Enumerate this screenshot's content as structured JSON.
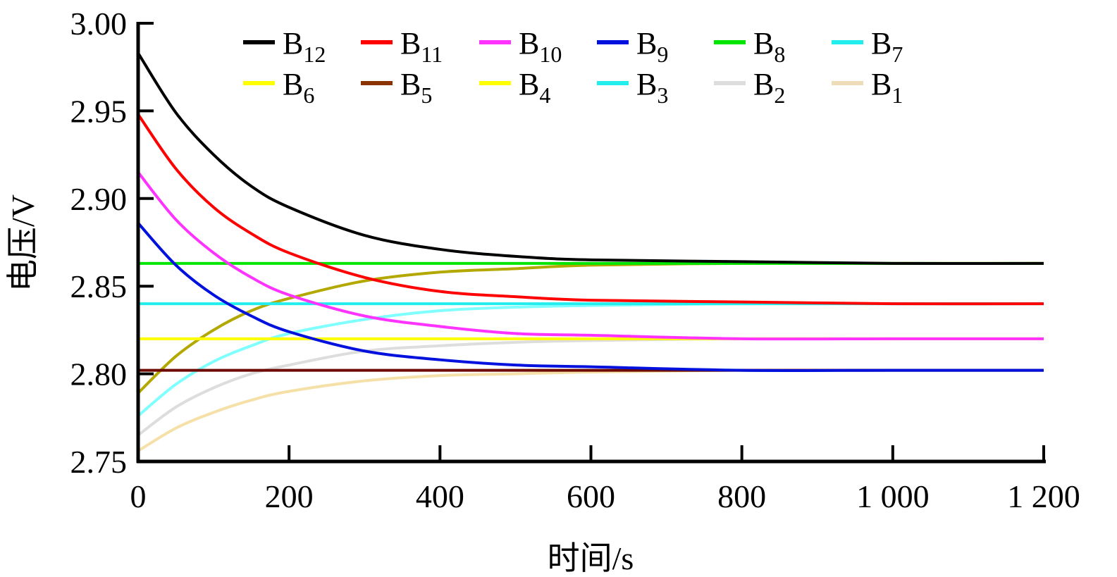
{
  "chart_data": {
    "type": "line",
    "title": "",
    "xlabel": "时间/s",
    "ylabel": "电压/V",
    "xlim": [
      0,
      1200
    ],
    "ylim": [
      2.75,
      3.0
    ],
    "grid": false,
    "legend_position": "top",
    "x_ticks": [
      "0",
      "200",
      "400",
      "600",
      "800",
      "1 000",
      "1 200"
    ],
    "x_tick_values": [
      0,
      200,
      400,
      600,
      800,
      1000,
      1200
    ],
    "y_ticks": [
      "2.75",
      "2.80",
      "2.85",
      "2.90",
      "2.95",
      "3.00"
    ],
    "y_tick_values": [
      2.75,
      2.8,
      2.85,
      2.9,
      2.95,
      3.0
    ],
    "x": [
      0,
      50,
      100,
      150,
      200,
      300,
      400,
      500,
      600,
      800,
      1000,
      1200
    ],
    "series": [
      {
        "name": "B12",
        "base": "B",
        "sub": "12",
        "color": "#000000",
        "legend_color": "#000000",
        "values": [
          2.983,
          2.949,
          2.925,
          2.907,
          2.895,
          2.879,
          2.871,
          2.867,
          2.865,
          2.864,
          2.863,
          2.863
        ]
      },
      {
        "name": "B11",
        "base": "B",
        "sub": "11",
        "color": "#ff0000",
        "legend_color": "#ff0000",
        "values": [
          2.948,
          2.917,
          2.895,
          2.88,
          2.869,
          2.855,
          2.847,
          2.844,
          2.842,
          2.841,
          2.84,
          2.84
        ]
      },
      {
        "name": "B10",
        "base": "B",
        "sub": "10",
        "color": "#ff33ff",
        "legend_color": "#ff33ff",
        "values": [
          2.915,
          2.888,
          2.869,
          2.855,
          2.845,
          2.833,
          2.827,
          2.823,
          2.822,
          2.82,
          2.82,
          2.82
        ]
      },
      {
        "name": "B9",
        "base": "B",
        "sub": "9",
        "color": "#0011dd",
        "legend_color": "#0011dd",
        "values": [
          2.886,
          2.862,
          2.845,
          2.833,
          2.824,
          2.813,
          2.808,
          2.805,
          2.804,
          2.802,
          2.802,
          2.802
        ]
      },
      {
        "name": "B8",
        "base": "B",
        "sub": "8",
        "color": "#00e600",
        "legend_color": "#00e600",
        "values": [
          2.863,
          2.863,
          2.863,
          2.863,
          2.863,
          2.863,
          2.863,
          2.863,
          2.863,
          2.863,
          2.863,
          2.863
        ]
      },
      {
        "name": "B7",
        "base": "B",
        "sub": "7",
        "color": "#22eeee",
        "legend_color": "#22eeee",
        "values": [
          2.84,
          2.84,
          2.84,
          2.84,
          2.84,
          2.84,
          2.84,
          2.84,
          2.84,
          2.84,
          2.84,
          2.84
        ]
      },
      {
        "name": "B6",
        "base": "B",
        "sub": "6",
        "color": "#ffff00",
        "legend_color": "#ffff00",
        "values": [
          2.82,
          2.82,
          2.82,
          2.82,
          2.82,
          2.82,
          2.82,
          2.82,
          2.82,
          2.82,
          2.82,
          2.82
        ]
      },
      {
        "name": "B5",
        "base": "B",
        "sub": "5",
        "color": "#6e0a00",
        "legend_color": "#8b3300",
        "values": [
          2.802,
          2.802,
          2.802,
          2.802,
          2.802,
          2.802,
          2.802,
          2.802,
          2.802,
          2.802,
          2.802,
          2.802
        ]
      },
      {
        "name": "B4",
        "base": "B",
        "sub": "4",
        "color": "#b3a800",
        "legend_color": "#ffff00",
        "values": [
          2.789,
          2.81,
          2.825,
          2.836,
          2.843,
          2.853,
          2.858,
          2.86,
          2.862,
          2.863,
          2.863,
          2.863
        ]
      },
      {
        "name": "B3",
        "base": "B",
        "sub": "3",
        "color": "#80ffff",
        "legend_color": "#22eeee",
        "values": [
          2.776,
          2.794,
          2.807,
          2.816,
          2.823,
          2.831,
          2.836,
          2.838,
          2.839,
          2.84,
          2.84,
          2.84
        ]
      },
      {
        "name": "B2",
        "base": "B",
        "sub": "2",
        "color": "#dddddd",
        "legend_color": "#dddddd",
        "values": [
          2.765,
          2.781,
          2.792,
          2.8,
          2.805,
          2.813,
          2.816,
          2.818,
          2.819,
          2.82,
          2.82,
          2.82
        ]
      },
      {
        "name": "B1",
        "base": "B",
        "sub": "1",
        "color": "#f5e0a8",
        "legend_color": "#eedcb8",
        "values": [
          2.756,
          2.769,
          2.778,
          2.785,
          2.79,
          2.796,
          2.799,
          2.8,
          2.801,
          2.802,
          2.802,
          2.802
        ]
      }
    ]
  }
}
